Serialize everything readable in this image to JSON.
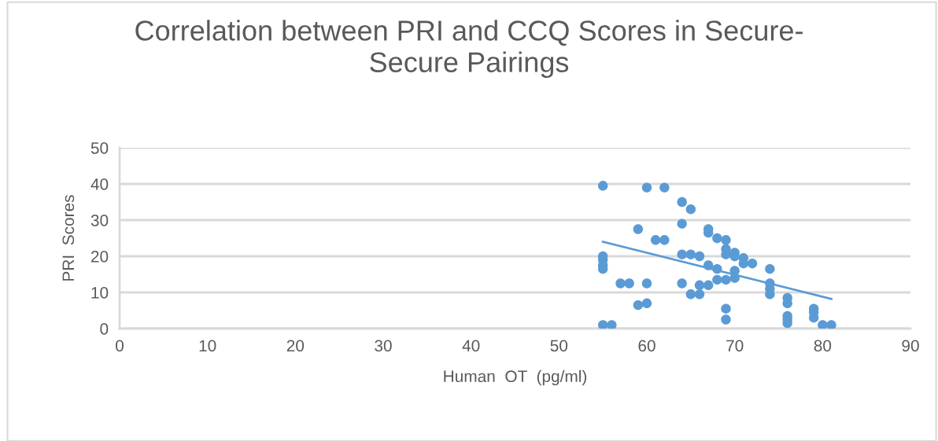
{
  "chart_data": {
    "type": "scatter",
    "title": "Correlation between PRI and CCQ Scores in Secure-\nSecure Pairings",
    "xlabel": "Human  OT  (pg/ml)",
    "ylabel": "PRI  Scores",
    "xlim": [
      0,
      90
    ],
    "xticks": [
      0,
      10,
      20,
      30,
      40,
      50,
      60,
      70,
      80,
      90
    ],
    "ylim": [
      0,
      50
    ],
    "yticks": [
      0,
      10,
      20,
      30,
      40,
      50
    ],
    "grid": "y",
    "marker": "circle",
    "legend": false,
    "series": [
      {
        "color": "#5b9bd5",
        "x": [
          55,
          55,
          55,
          55,
          55,
          55,
          56,
          57,
          58,
          59,
          59,
          60,
          60,
          60,
          61,
          62,
          62,
          64,
          65,
          64,
          64,
          65,
          66,
          64,
          65,
          66,
          66,
          67,
          67,
          67,
          67,
          68,
          68,
          68,
          69,
          69,
          69,
          69,
          69,
          69,
          70,
          70,
          70,
          70,
          71,
          71,
          72,
          74,
          74,
          74,
          74,
          76,
          76,
          76,
          76,
          76,
          79,
          79,
          79,
          80,
          81
        ],
        "values": [
          39.5,
          20,
          19,
          17.5,
          16.5,
          1,
          1,
          12.5,
          12.5,
          27.5,
          6.5,
          7,
          12.5,
          39,
          24.5,
          24.5,
          39,
          35,
          33,
          29,
          20.5,
          20.5,
          20,
          12.5,
          9.5,
          9.5,
          12,
          12,
          17.5,
          27.5,
          26.5,
          25,
          16.5,
          13.5,
          24.5,
          22,
          20.5,
          13.5,
          5.5,
          2.5,
          21,
          20,
          16,
          14,
          19.5,
          18,
          18,
          16.5,
          12.5,
          11,
          9.5,
          8.5,
          7,
          3.5,
          2.5,
          1.5,
          5.5,
          4.5,
          3,
          1,
          1
        ]
      },
      {
        "type": "line",
        "color": "#5b9bd5",
        "x": [
          55,
          81
        ],
        "values": [
          24,
          8.2
        ],
        "marker": "none"
      }
    ]
  }
}
